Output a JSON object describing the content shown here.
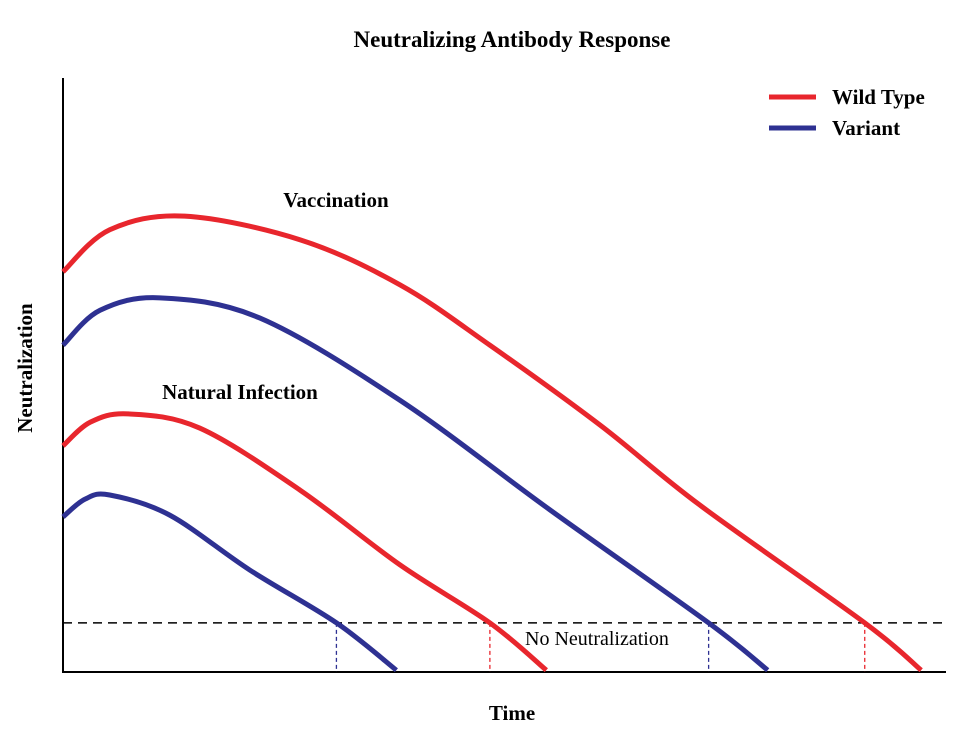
{
  "chart_data": {
    "type": "line",
    "title": "Neutralizing Antibody Response",
    "xlabel": "Time",
    "ylabel": "Neutralization",
    "xlim": [
      0,
      100
    ],
    "ylim": [
      0,
      100
    ],
    "grid": false,
    "legend_placement": "top-right",
    "legend": [
      {
        "name": "Wild Type",
        "color": "#e8262d"
      },
      {
        "name": "Variant",
        "color": "#2e3192"
      }
    ],
    "threshold": {
      "y": 8.3,
      "label": "No Neutralization",
      "style": "dashed",
      "color": "#000000"
    },
    "annotations": [
      {
        "text": "Vaccination"
      },
      {
        "text": "Natural Infection"
      }
    ],
    "series": [
      {
        "group": "Vaccination",
        "name": "Wild Type",
        "color": "#e8262d",
        "x": [
          0,
          5.3,
          13.8,
          26.9,
          38.2,
          48.4,
          60.9,
          72.2,
          90.9,
          97.3
        ],
        "y": [
          67.6,
          74.7,
          77.0,
          73.0,
          65.4,
          55.2,
          41.7,
          28.2,
          8.3,
          0.3
        ]
      },
      {
        "group": "Vaccination",
        "name": "Variant",
        "color": "#2e3192",
        "x": [
          0,
          4.2,
          11,
          22.3,
          38.2,
          55.2,
          73.2,
          79.9
        ],
        "y": [
          55.2,
          61.1,
          63.2,
          59.8,
          45.9,
          27.4,
          8.3,
          0.3
        ]
      },
      {
        "group": "Natural Infection",
        "name": "Wild Type",
        "color": "#e8262d",
        "x": [
          0,
          3.1,
          7.4,
          15.5,
          26.9,
          38.2,
          48.4,
          54.8
        ],
        "y": [
          38.2,
          42.2,
          43.6,
          41.2,
          30.7,
          18.1,
          8.3,
          0.3
        ]
      },
      {
        "group": "Natural Infection",
        "name": "Variant",
        "color": "#2e3192",
        "x": [
          0,
          2.5,
          5.3,
          12.1,
          21.2,
          31,
          37.8
        ],
        "y": [
          26.2,
          29.2,
          29.9,
          26.5,
          17.2,
          8.3,
          0.3
        ]
      }
    ]
  }
}
